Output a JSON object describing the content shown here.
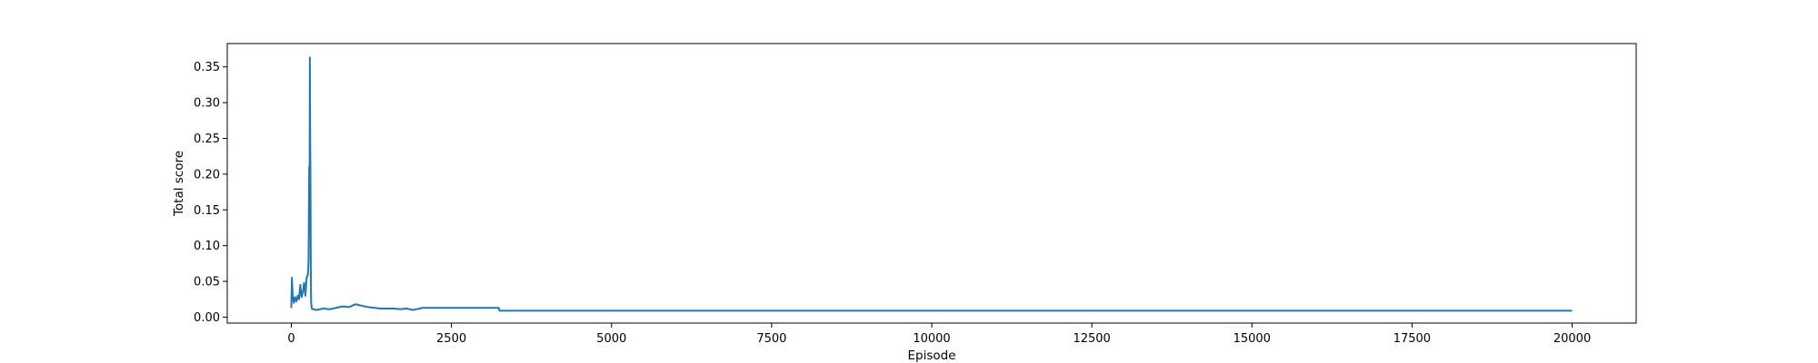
{
  "chart_data": {
    "type": "line",
    "xlabel": "Episode",
    "ylabel": "Total score",
    "xlim": [
      -1000,
      21000
    ],
    "ylim": [
      -0.0083,
      0.3826
    ],
    "xticks": [
      0,
      2500,
      5000,
      7500,
      10000,
      12500,
      15000,
      17500,
      20000
    ],
    "xtick_labels": [
      "0",
      "2500",
      "5000",
      "7500",
      "10000",
      "12500",
      "15000",
      "17500",
      "20000"
    ],
    "yticks": [
      0.0,
      0.05,
      0.1,
      0.15,
      0.2,
      0.25,
      0.3,
      0.35
    ],
    "ytick_labels": [
      "0.00",
      "0.05",
      "0.10",
      "0.15",
      "0.20",
      "0.25",
      "0.30",
      "0.35"
    ],
    "grid": false,
    "legend": "none",
    "series": [
      {
        "color": "#1f77b4",
        "x": [
          0,
          10,
          20,
          30,
          40,
          60,
          80,
          100,
          120,
          140,
          160,
          180,
          200,
          220,
          240,
          260,
          270,
          280,
          285,
          290,
          295,
          300,
          305,
          310,
          320,
          340,
          400,
          500,
          600,
          700,
          800,
          900,
          1000,
          1100,
          1200,
          1300,
          1400,
          1500,
          1600,
          1700,
          1800,
          1900,
          2000,
          2050,
          2100,
          2500,
          3000,
          3240,
          3250,
          3300,
          5000,
          10000,
          15000,
          20000
        ],
        "y": [
          0.013,
          0.055,
          0.032,
          0.025,
          0.02,
          0.028,
          0.022,
          0.03,
          0.025,
          0.045,
          0.028,
          0.035,
          0.048,
          0.03,
          0.055,
          0.06,
          0.08,
          0.21,
          0.12,
          0.363,
          0.25,
          0.18,
          0.06,
          0.02,
          0.012,
          0.011,
          0.01,
          0.012,
          0.011,
          0.013,
          0.015,
          0.014,
          0.018,
          0.016,
          0.014,
          0.013,
          0.012,
          0.012,
          0.012,
          0.011,
          0.012,
          0.01,
          0.012,
          0.013,
          0.013,
          0.013,
          0.013,
          0.013,
          0.009,
          0.009,
          0.009,
          0.009,
          0.009,
          0.009
        ]
      }
    ]
  }
}
